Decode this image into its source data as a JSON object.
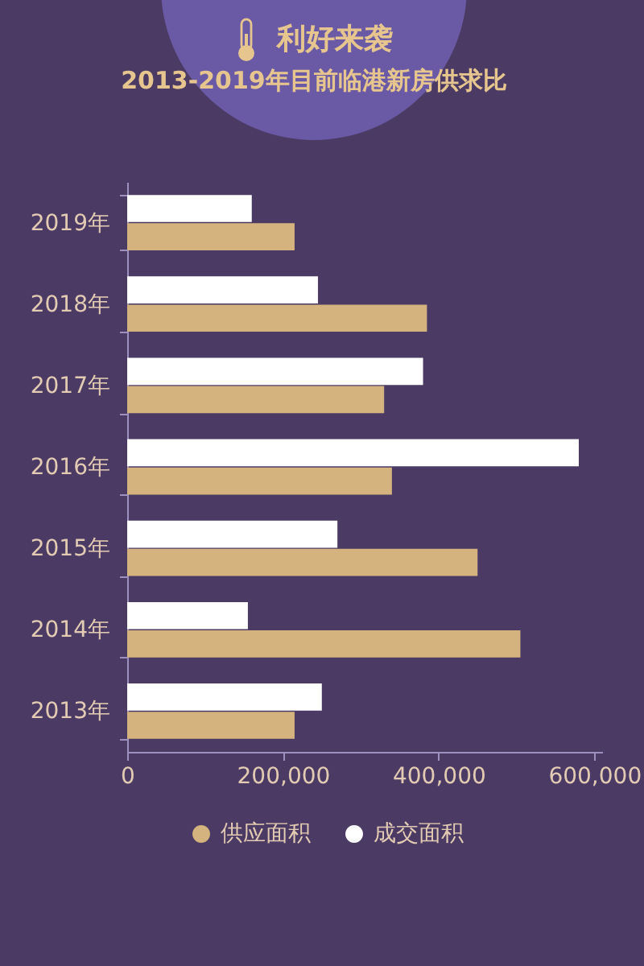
{
  "chart_data": {
    "type": "bar",
    "orientation": "horizontal",
    "title": "利好来袭",
    "subtitle": "2013-2019年目前临港新房供求比",
    "categories": [
      "2019年",
      "2018年",
      "2017年",
      "2016年",
      "2015年",
      "2014年",
      "2013年"
    ],
    "series": [
      {
        "name": "供应面积",
        "color": "#d4b37e",
        "values": [
          215000,
          385000,
          330000,
          340000,
          450000,
          505000,
          215000
        ]
      },
      {
        "name": "成交面积",
        "color": "#ffffff",
        "values": [
          160000,
          245000,
          380000,
          580000,
          270000,
          155000,
          250000
        ]
      }
    ],
    "xlim": [
      0,
      610000
    ],
    "xticks": [
      0,
      {
        "value": 200000,
        "label": "200,000"
      },
      {
        "value": 400000,
        "label": "400,000"
      },
      {
        "value": 600000,
        "label": "600,000"
      }
    ],
    "legend": "bottom"
  }
}
